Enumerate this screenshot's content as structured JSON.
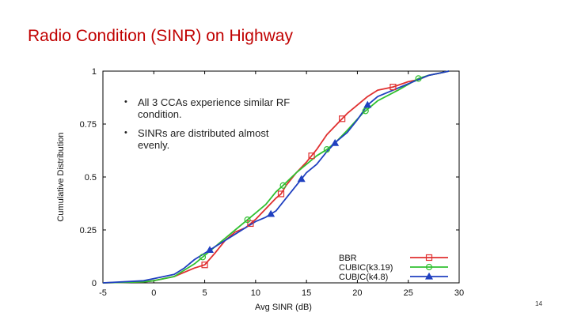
{
  "slide": {
    "title": "Radio Condition (SINR) on Highway",
    "bullets": [
      "All 3 CCAs experience similar RF condition.",
      "SINRs are distributed almost evenly."
    ],
    "page_number": "14"
  },
  "chart_data": {
    "type": "line",
    "title": "",
    "xlabel": "Avg SINR (dB)",
    "ylabel": "Cumulative Distribution",
    "xlim": [
      -5,
      30
    ],
    "ylim": [
      0,
      1
    ],
    "x_ticks": [
      -5,
      0,
      5,
      10,
      15,
      20,
      25,
      30
    ],
    "x_tick_labels": [
      "-5",
      "0",
      "5",
      "10",
      "15",
      "20",
      "25",
      "30"
    ],
    "y_ticks": [
      0,
      0.25,
      0.5,
      0.75,
      1
    ],
    "y_tick_labels": [
      "0",
      "0.25",
      "0.5",
      "0.75",
      "1"
    ],
    "legend_position": "bottom-right",
    "series": [
      {
        "name": "BBR",
        "color": "#e03030",
        "marker": "square",
        "points": [
          [
            -5,
            0
          ],
          [
            -1,
            0.005
          ],
          [
            0,
            0.01
          ],
          [
            2,
            0.03
          ],
          [
            3,
            0.05
          ],
          [
            4,
            0.07
          ],
          [
            5,
            0.085
          ],
          [
            6,
            0.14
          ],
          [
            7,
            0.2
          ],
          [
            8,
            0.24
          ],
          [
            9,
            0.26
          ],
          [
            10,
            0.3
          ],
          [
            11,
            0.35
          ],
          [
            12,
            0.4
          ],
          [
            12.5,
            0.42
          ],
          [
            13,
            0.46
          ],
          [
            14,
            0.52
          ],
          [
            15,
            0.57
          ],
          [
            16,
            0.63
          ],
          [
            17,
            0.7
          ],
          [
            18,
            0.75
          ],
          [
            19,
            0.8
          ],
          [
            20,
            0.84
          ],
          [
            21,
            0.88
          ],
          [
            22,
            0.91
          ],
          [
            23.5,
            0.925
          ],
          [
            25,
            0.95
          ],
          [
            26,
            0.96
          ],
          [
            27,
            0.98
          ],
          [
            28,
            0.99
          ],
          [
            29,
            1
          ]
        ],
        "markers_x": [
          5,
          9.5,
          12.5,
          15.5,
          18.5,
          23.5
        ]
      },
      {
        "name": "CUBIC(k3.19)",
        "color": "#30c030",
        "marker": "circle",
        "points": [
          [
            -5,
            0
          ],
          [
            -1,
            0.005
          ],
          [
            0,
            0.01
          ],
          [
            2,
            0.03
          ],
          [
            3,
            0.06
          ],
          [
            4,
            0.09
          ],
          [
            5,
            0.13
          ],
          [
            6,
            0.17
          ],
          [
            7,
            0.21
          ],
          [
            8,
            0.25
          ],
          [
            9,
            0.29
          ],
          [
            10,
            0.33
          ],
          [
            11,
            0.37
          ],
          [
            12,
            0.43
          ],
          [
            12.7,
            0.46
          ],
          [
            14,
            0.52
          ],
          [
            15,
            0.56
          ],
          [
            16,
            0.6
          ],
          [
            17,
            0.63
          ],
          [
            18,
            0.67
          ],
          [
            19,
            0.72
          ],
          [
            20.5,
            0.8
          ],
          [
            22,
            0.86
          ],
          [
            24,
            0.91
          ],
          [
            26,
            0.965
          ],
          [
            27,
            0.98
          ],
          [
            28,
            0.99
          ],
          [
            29,
            1
          ]
        ],
        "markers_x": [
          4.8,
          9.2,
          12.7,
          17,
          20.8,
          26
        ]
      },
      {
        "name": "CUBIC(k4.8)",
        "color": "#2040c0",
        "marker": "triangle",
        "points": [
          [
            -5,
            0
          ],
          [
            -1,
            0.01
          ],
          [
            0,
            0.02
          ],
          [
            2,
            0.04
          ],
          [
            3,
            0.07
          ],
          [
            4,
            0.11
          ],
          [
            5,
            0.14
          ],
          [
            6,
            0.17
          ],
          [
            7,
            0.2
          ],
          [
            8,
            0.23
          ],
          [
            9,
            0.26
          ],
          [
            10,
            0.29
          ],
          [
            11,
            0.31
          ],
          [
            12,
            0.34
          ],
          [
            13,
            0.4
          ],
          [
            14,
            0.46
          ],
          [
            15,
            0.52
          ],
          [
            16,
            0.56
          ],
          [
            17,
            0.62
          ],
          [
            18,
            0.67
          ],
          [
            19,
            0.71
          ],
          [
            20,
            0.77
          ],
          [
            21,
            0.84
          ],
          [
            22,
            0.88
          ],
          [
            24,
            0.92
          ],
          [
            26,
            0.96
          ],
          [
            27,
            0.98
          ],
          [
            28,
            0.99
          ],
          [
            29,
            1
          ]
        ],
        "markers_x": [
          5.5,
          11.5,
          14.5,
          17.8,
          21
        ]
      }
    ]
  },
  "colors": {
    "title": "#c00000",
    "axes": "#000000"
  }
}
